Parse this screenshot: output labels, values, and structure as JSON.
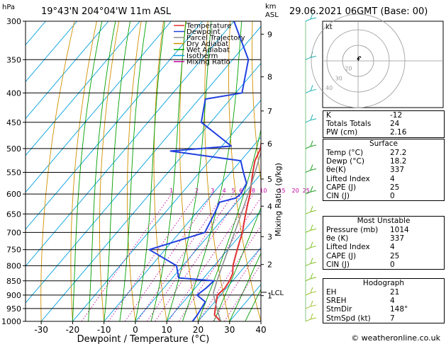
{
  "header": {
    "hpa_unit": "hPa",
    "location": "19°43'N  204°04'W  11m  ASL",
    "km_unit": "km",
    "asl_unit": "ASL",
    "datetime": "29.06.2021  06GMT  (Base: 00)"
  },
  "legend": [
    {
      "label": "Temperature",
      "color": "#e03030"
    },
    {
      "label": "Dewpoint",
      "color": "#2040e0"
    },
    {
      "label": "Parcel Trajectory",
      "color": "#909090"
    },
    {
      "label": "Dry Adiabat",
      "color": "#d09000"
    },
    {
      "label": "Wet Adiabat",
      "color": "#00a000"
    },
    {
      "label": "Isotherm",
      "color": "#00a0e0"
    },
    {
      "label": "Mixing Ratio",
      "color": "#c000a0"
    }
  ],
  "chart_data": {
    "type": "line",
    "xlabel": "Dewpoint / Temperature (°C)",
    "ylabel_right": "Mixing Ratio (g/kg)",
    "xlim": [
      -35,
      40
    ],
    "x_ticks": [
      -30,
      -20,
      -10,
      0,
      10,
      20,
      30,
      40
    ],
    "pressure_levels": [
      300,
      350,
      400,
      450,
      500,
      550,
      600,
      650,
      700,
      750,
      800,
      850,
      900,
      950,
      1000
    ],
    "km_ticks": [
      {
        "label": "9",
        "p": 316
      },
      {
        "label": "8",
        "p": 375
      },
      {
        "label": "7",
        "p": 430
      },
      {
        "label": "6",
        "p": 490
      },
      {
        "label": "5",
        "p": 565
      },
      {
        "label": "4",
        "p": 630
      },
      {
        "label": "3",
        "p": 712
      },
      {
        "label": "2",
        "p": 796
      },
      {
        "label": "1",
        "p": 902
      }
    ],
    "lcl_label": "LCL",
    "lcl_p": 890,
    "mixing_ratio_labels": [
      "1",
      "2",
      "3",
      "4",
      "5",
      "6",
      "8",
      "10",
      "15",
      "20",
      "25"
    ],
    "series": [
      {
        "name": "Temperature",
        "color": "#e03030",
        "points": [
          [
            1000,
            27.2
          ],
          [
            975,
            23.5
          ],
          [
            950,
            22.0
          ],
          [
            925,
            20.5
          ],
          [
            900,
            19.0
          ],
          [
            875,
            19.5
          ],
          [
            850,
            19.0
          ],
          [
            825,
            18.0
          ],
          [
            800,
            16.0
          ],
          [
            775,
            14.5
          ],
          [
            750,
            13.0
          ],
          [
            725,
            11.5
          ],
          [
            700,
            10.0
          ],
          [
            675,
            8.0
          ],
          [
            650,
            6.0
          ],
          [
            625,
            4.0
          ],
          [
            600,
            2.0
          ],
          [
            575,
            -0.5
          ],
          [
            550,
            -3.0
          ],
          [
            525,
            -5.5
          ],
          [
            500,
            -7.0
          ],
          [
            475,
            -10.0
          ],
          [
            450,
            -13.0
          ],
          [
            425,
            -16.0
          ],
          [
            400,
            -18.5
          ],
          [
            375,
            -22.5
          ],
          [
            350,
            -27.0
          ],
          [
            325,
            -32.0
          ],
          [
            300,
            -37.0
          ]
        ]
      },
      {
        "name": "Dewpoint",
        "color": "#2040e0",
        "points": [
          [
            1000,
            18.2
          ],
          [
            975,
            18.0
          ],
          [
            950,
            17.5
          ],
          [
            925,
            17.0
          ],
          [
            900,
            12.5
          ],
          [
            875,
            13.5
          ],
          [
            850,
            14.0
          ],
          [
            840,
            2.0
          ],
          [
            800,
            -2.0
          ],
          [
            750,
            -15.0
          ],
          [
            700,
            -2.0
          ],
          [
            650,
            -4.0
          ],
          [
            620,
            -5.5
          ],
          [
            610,
            -1.5
          ],
          [
            600,
            -1.0
          ],
          [
            575,
            -2.0
          ],
          [
            550,
            -6.0
          ],
          [
            525,
            -10.0
          ],
          [
            505,
            -35.0
          ],
          [
            495,
            -17.0
          ],
          [
            450,
            -33.0
          ],
          [
            410,
            -38.0
          ],
          [
            400,
            -28.0
          ],
          [
            350,
            -35.0
          ],
          [
            300,
            -50.0
          ]
        ]
      },
      {
        "name": "Parcel Trajectory",
        "color": "#909090",
        "points": [
          [
            1000,
            27.2
          ],
          [
            950,
            22.5
          ],
          [
            900,
            17.8
          ],
          [
            890,
            17.0
          ],
          [
            850,
            15.0
          ],
          [
            800,
            12.6
          ],
          [
            750,
            10.1
          ],
          [
            700,
            7.5
          ],
          [
            650,
            4.6
          ],
          [
            600,
            1.4
          ],
          [
            550,
            -2.3
          ],
          [
            500,
            -6.5
          ],
          [
            450,
            -11.5
          ],
          [
            400,
            -17.5
          ],
          [
            350,
            -25.0
          ],
          [
            300,
            -34.0
          ]
        ]
      }
    ]
  },
  "hodograph": {
    "label": "kt",
    "rings": [
      "20",
      "30",
      "40"
    ],
    "points_kt": [
      [
        4.0,
        4.5
      ],
      [
        3.0,
        6.0
      ],
      [
        1.0,
        5.5
      ],
      [
        -1.0,
        3.0
      ],
      [
        0.5,
        1.0
      ],
      [
        1.5,
        3.0
      ],
      [
        0.5,
        4.0
      ]
    ]
  },
  "indices": [
    {
      "label": "K",
      "value": "-12"
    },
    {
      "label": "Totals Totals",
      "value": "24"
    },
    {
      "label": "PW (cm)",
      "value": "2.16"
    }
  ],
  "surface": {
    "title": "Surface",
    "rows": [
      {
        "label": "Temp (°C)",
        "value": "27.2"
      },
      {
        "label": "Dewp (°C)",
        "value": "18.2"
      },
      {
        "label": "θe(K)",
        "value": "337"
      },
      {
        "label": "Lifted Index",
        "value": "4"
      },
      {
        "label": "CAPE (J)",
        "value": "25"
      },
      {
        "label": "CIN (J)",
        "value": "0"
      }
    ]
  },
  "most_unstable": {
    "title": "Most Unstable",
    "rows": [
      {
        "label": "Pressure (mb)",
        "value": "1014"
      },
      {
        "label": "θe (K)",
        "value": "337"
      },
      {
        "label": "Lifted Index",
        "value": "4"
      },
      {
        "label": "CAPE (J)",
        "value": "25"
      },
      {
        "label": "CIN (J)",
        "value": "0"
      }
    ]
  },
  "hodograph_table": {
    "title": "Hodograph",
    "rows": [
      {
        "label": "EH",
        "value": "21"
      },
      {
        "label": "SREH",
        "value": "4"
      },
      {
        "label": "StmDir",
        "value": "148°"
      },
      {
        "label": "StmSpd (kt)",
        "value": "7"
      }
    ]
  },
  "footer": "© weatheronline.co.uk"
}
